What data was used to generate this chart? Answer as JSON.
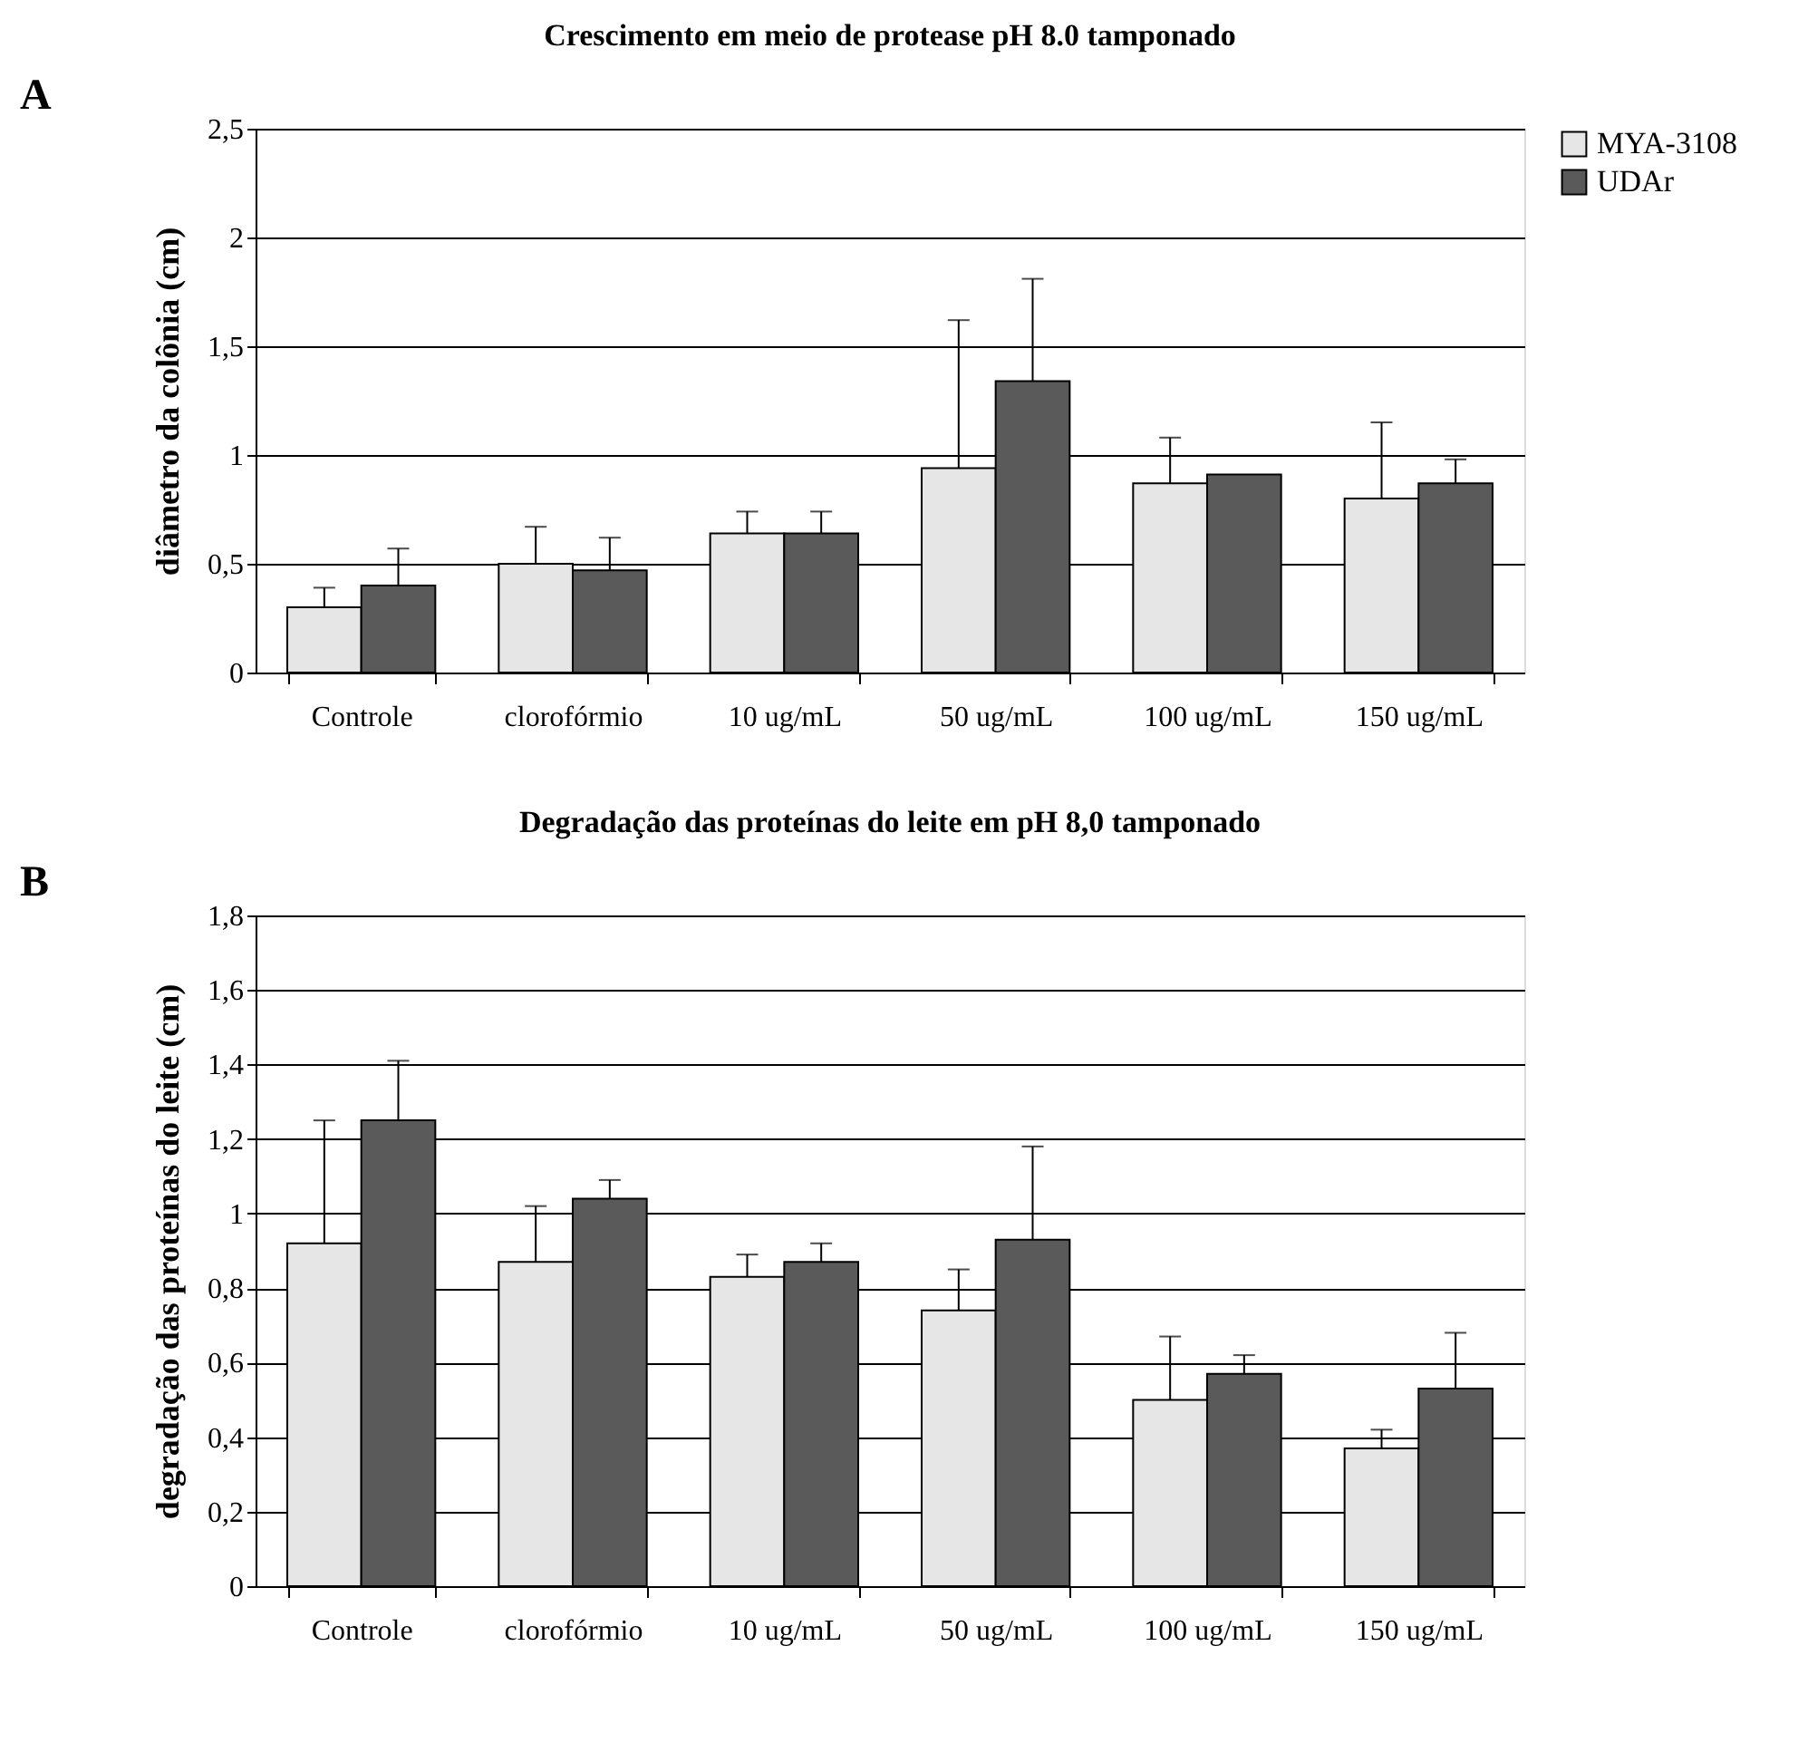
{
  "chart_data": [
    {
      "type": "bar",
      "title": "Crescimento em meio de protease pH 8.0 tamponado",
      "ylabel": "diâmetro da colônia (cm)",
      "annotations": [
        "A"
      ],
      "categories": [
        "Controle",
        "clorofórmio",
        "10 ug/mL",
        "50 ug/mL",
        "100 ug/mL",
        "150 ug/mL"
      ],
      "series": [
        {
          "name": "MYA-3108",
          "color": "#e6e6e6",
          "values": [
            0.3,
            0.5,
            0.64,
            0.94,
            0.87,
            0.8
          ],
          "errors": [
            [
              0.3,
              0.39
            ],
            [
              0.5,
              0.67
            ],
            [
              0.64,
              0.74
            ],
            [
              0.94,
              1.62
            ],
            [
              0.87,
              1.08
            ],
            [
              0.8,
              1.15
            ]
          ]
        },
        {
          "name": "UDAr",
          "color": "#5a5a5a",
          "values": [
            0.4,
            0.47,
            0.64,
            1.34,
            0.91,
            0.87
          ],
          "errors": [
            [
              0.4,
              0.57
            ],
            [
              0.47,
              0.62
            ],
            [
              0.64,
              0.74
            ],
            [
              1.34,
              1.81
            ],
            null,
            [
              0.87,
              0.98
            ]
          ]
        }
      ],
      "ylim": [
        0,
        2.5
      ],
      "yticks": [
        0,
        {
          "value": 0.5,
          "label": "0,5"
        },
        1,
        {
          "value": 1.5,
          "label": "1,5"
        },
        2,
        {
          "value": 2.5,
          "label": "2,5"
        }
      ],
      "grid": "y",
      "legend": "right"
    },
    {
      "type": "bar",
      "title": "Degradação das proteínas do leite em pH 8,0 tamponado",
      "ylabel": "degradação das proteínas do leite (cm)",
      "annotations": [
        "B"
      ],
      "categories": [
        "Controle",
        "clorofórmio",
        "10 ug/mL",
        "50 ug/mL",
        "100 ug/mL",
        "150 ug/mL"
      ],
      "series": [
        {
          "name": "MYA-3108",
          "color": "#e6e6e6",
          "values": [
            0.92,
            0.87,
            0.83,
            0.74,
            0.5,
            0.37
          ],
          "errors": [
            [
              0.92,
              1.25
            ],
            [
              0.87,
              1.02
            ],
            [
              0.83,
              0.89
            ],
            [
              0.74,
              0.85
            ],
            [
              0.5,
              0.67
            ],
            [
              0.37,
              0.42
            ]
          ]
        },
        {
          "name": "UDAr",
          "color": "#5a5a5a",
          "values": [
            1.25,
            1.04,
            0.87,
            0.93,
            0.57,
            0.53
          ],
          "errors": [
            [
              1.25,
              1.41
            ],
            [
              1.04,
              1.09
            ],
            [
              0.87,
              0.92
            ],
            [
              0.93,
              1.18
            ],
            [
              0.57,
              0.62
            ],
            [
              0.53,
              0.68
            ]
          ]
        }
      ],
      "ylim": [
        0,
        1.8
      ],
      "yticks": [
        0,
        {
          "value": 0.2,
          "label": "0,2"
        },
        {
          "value": 0.4,
          "label": "0,4"
        },
        {
          "value": 0.6,
          "label": "0,6"
        },
        {
          "value": 0.8,
          "label": "0,8"
        },
        1,
        {
          "value": 1.2,
          "label": "1,2"
        },
        {
          "value": 1.4,
          "label": "1,4"
        },
        {
          "value": 1.6,
          "label": "1,6"
        },
        {
          "value": 1.8,
          "label": "1,8"
        }
      ],
      "grid": "y",
      "legend": "right"
    }
  ]
}
